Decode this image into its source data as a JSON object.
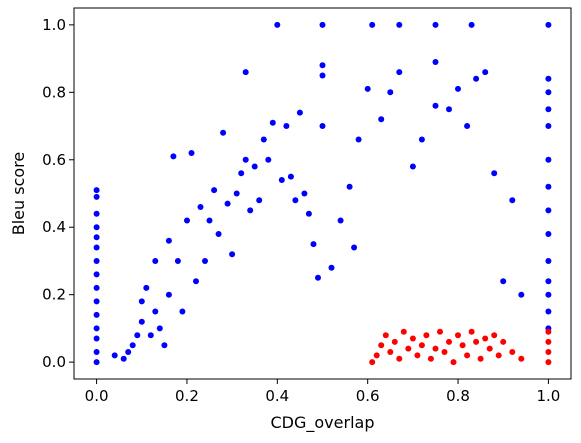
{
  "chart_data": {
    "type": "scatter",
    "xlabel": "CDG_overlap",
    "ylabel": "Bleu score",
    "xlim": [
      -0.05,
      1.05
    ],
    "ylim": [
      -0.05,
      1.05
    ],
    "grid": false,
    "x_ticks": [
      "0.0",
      "0.2",
      "0.4",
      "0.6",
      "0.8",
      "1.0"
    ],
    "y_ticks": [
      "0.0",
      "0.2",
      "0.4",
      "0.6",
      "0.8",
      "1.0"
    ],
    "colors": {
      "primary": "#0000ff",
      "highlight": "#ff0000"
    },
    "series": [
      {
        "color": "#0000ff",
        "points": [
          [
            0.0,
            0.51
          ],
          [
            0.0,
            0.49
          ],
          [
            0.0,
            0.44
          ],
          [
            0.0,
            0.4
          ],
          [
            0.0,
            0.37
          ],
          [
            0.0,
            0.34
          ],
          [
            0.0,
            0.3
          ],
          [
            0.0,
            0.26
          ],
          [
            0.0,
            0.22
          ],
          [
            0.0,
            0.18
          ],
          [
            0.0,
            0.14
          ],
          [
            0.0,
            0.1
          ],
          [
            0.0,
            0.07
          ],
          [
            0.0,
            0.03
          ],
          [
            0.0,
            0.0
          ],
          [
            0.04,
            0.02
          ],
          [
            0.06,
            0.01
          ],
          [
            0.07,
            0.03
          ],
          [
            0.08,
            0.05
          ],
          [
            0.09,
            0.08
          ],
          [
            0.1,
            0.12
          ],
          [
            0.1,
            0.18
          ],
          [
            0.11,
            0.22
          ],
          [
            0.12,
            0.08
          ],
          [
            0.13,
            0.15
          ],
          [
            0.13,
            0.3
          ],
          [
            0.14,
            0.1
          ],
          [
            0.15,
            0.05
          ],
          [
            0.16,
            0.2
          ],
          [
            0.16,
            0.36
          ],
          [
            0.17,
            0.61
          ],
          [
            0.18,
            0.3
          ],
          [
            0.19,
            0.15
          ],
          [
            0.2,
            0.42
          ],
          [
            0.21,
            0.62
          ],
          [
            0.22,
            0.24
          ],
          [
            0.23,
            0.46
          ],
          [
            0.24,
            0.3
          ],
          [
            0.25,
            0.42
          ],
          [
            0.26,
            0.51
          ],
          [
            0.27,
            0.38
          ],
          [
            0.28,
            0.68
          ],
          [
            0.29,
            0.47
          ],
          [
            0.3,
            0.32
          ],
          [
            0.31,
            0.5
          ],
          [
            0.32,
            0.56
          ],
          [
            0.33,
            0.86
          ],
          [
            0.33,
            0.6
          ],
          [
            0.34,
            0.45
          ],
          [
            0.35,
            0.58
          ],
          [
            0.36,
            0.48
          ],
          [
            0.37,
            0.66
          ],
          [
            0.38,
            0.6
          ],
          [
            0.39,
            0.71
          ],
          [
            0.4,
            1.0
          ],
          [
            0.41,
            0.54
          ],
          [
            0.42,
            0.7
          ],
          [
            0.43,
            0.55
          ],
          [
            0.44,
            0.48
          ],
          [
            0.45,
            0.74
          ],
          [
            0.46,
            0.5
          ],
          [
            0.47,
            0.44
          ],
          [
            0.48,
            0.35
          ],
          [
            0.49,
            0.25
          ],
          [
            0.5,
            1.0
          ],
          [
            0.5,
            0.88
          ],
          [
            0.5,
            0.85
          ],
          [
            0.5,
            0.7
          ],
          [
            0.52,
            0.28
          ],
          [
            0.54,
            0.42
          ],
          [
            0.56,
            0.52
          ],
          [
            0.57,
            0.34
          ],
          [
            0.58,
            0.66
          ],
          [
            0.6,
            0.81
          ],
          [
            0.61,
            1.0
          ],
          [
            0.63,
            0.72
          ],
          [
            0.65,
            0.8
          ],
          [
            0.67,
            1.0
          ],
          [
            0.67,
            0.86
          ],
          [
            0.7,
            0.58
          ],
          [
            0.72,
            0.66
          ],
          [
            0.75,
            1.0
          ],
          [
            0.75,
            0.89
          ],
          [
            0.75,
            0.76
          ],
          [
            0.78,
            0.75
          ],
          [
            0.8,
            0.81
          ],
          [
            0.82,
            0.7
          ],
          [
            0.83,
            1.0
          ],
          [
            0.84,
            0.84
          ],
          [
            0.86,
            0.86
          ],
          [
            0.88,
            0.56
          ],
          [
            0.9,
            0.24
          ],
          [
            0.92,
            0.48
          ],
          [
            0.94,
            0.2
          ],
          [
            1.0,
            1.0
          ],
          [
            1.0,
            0.84
          ],
          [
            1.0,
            0.8
          ],
          [
            1.0,
            0.75
          ],
          [
            1.0,
            0.7
          ],
          [
            1.0,
            0.6
          ],
          [
            1.0,
            0.52
          ],
          [
            1.0,
            0.45
          ],
          [
            1.0,
            0.38
          ],
          [
            1.0,
            0.3
          ],
          [
            1.0,
            0.24
          ],
          [
            1.0,
            0.2
          ],
          [
            1.0,
            0.15
          ],
          [
            1.0,
            0.1
          ]
        ]
      },
      {
        "color": "#ff0000",
        "points": [
          [
            0.61,
            0.0
          ],
          [
            0.62,
            0.02
          ],
          [
            0.63,
            0.05
          ],
          [
            0.64,
            0.08
          ],
          [
            0.65,
            0.03
          ],
          [
            0.66,
            0.06
          ],
          [
            0.67,
            0.01
          ],
          [
            0.68,
            0.09
          ],
          [
            0.69,
            0.04
          ],
          [
            0.7,
            0.07
          ],
          [
            0.71,
            0.02
          ],
          [
            0.72,
            0.05
          ],
          [
            0.73,
            0.08
          ],
          [
            0.74,
            0.01
          ],
          [
            0.75,
            0.04
          ],
          [
            0.76,
            0.09
          ],
          [
            0.77,
            0.03
          ],
          [
            0.78,
            0.06
          ],
          [
            0.79,
            0.0
          ],
          [
            0.8,
            0.08
          ],
          [
            0.81,
            0.05
          ],
          [
            0.82,
            0.02
          ],
          [
            0.83,
            0.09
          ],
          [
            0.84,
            0.06
          ],
          [
            0.85,
            0.01
          ],
          [
            0.86,
            0.07
          ],
          [
            0.87,
            0.04
          ],
          [
            0.88,
            0.08
          ],
          [
            0.89,
            0.02
          ],
          [
            0.9,
            0.06
          ],
          [
            0.92,
            0.03
          ],
          [
            0.94,
            0.01
          ],
          [
            1.0,
            0.09
          ],
          [
            1.0,
            0.06
          ],
          [
            1.0,
            0.03
          ],
          [
            1.0,
            0.0
          ]
        ]
      }
    ]
  }
}
